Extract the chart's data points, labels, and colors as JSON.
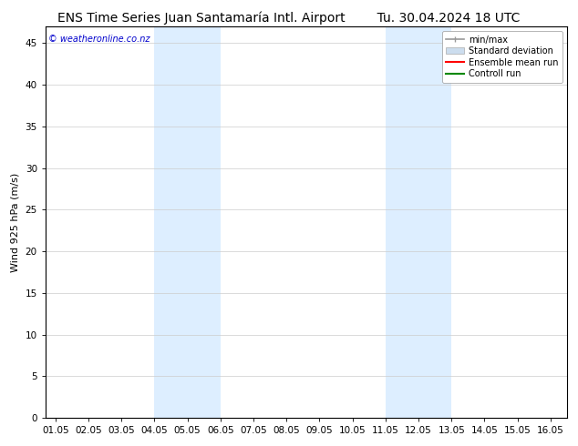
{
  "title_left": "ENS Time Series Juan Santamaría Intl. Airport",
  "title_right": "Tu. 30.04.2024 18 UTC",
  "ylabel": "Wind 925 hPa (m/s)",
  "watermark": "© weatheronline.co.nz",
  "bg_color": "#ffffff",
  "plot_bg_color": "#ffffff",
  "shaded_bands": [
    {
      "x_start": 4.05,
      "x_end": 6.05,
      "color": "#ddeeff"
    },
    {
      "x_start": 11.05,
      "x_end": 13.05,
      "color": "#ddeeff"
    }
  ],
  "ylim": [
    0,
    47
  ],
  "yticks": [
    0,
    5,
    10,
    15,
    20,
    25,
    30,
    35,
    40,
    45
  ],
  "xlim_start": 0.75,
  "xlim_end": 16.55,
  "xtick_labels": [
    "01.05",
    "02.05",
    "03.05",
    "04.05",
    "05.05",
    "06.05",
    "07.05",
    "08.05",
    "09.05",
    "10.05",
    "11.05",
    "12.05",
    "13.05",
    "14.05",
    "15.05",
    "16.05"
  ],
  "xtick_positions": [
    1.05,
    2.05,
    3.05,
    4.05,
    5.05,
    6.05,
    7.05,
    8.05,
    9.05,
    10.05,
    11.05,
    12.05,
    13.05,
    14.05,
    15.05,
    16.05
  ],
  "legend_items": [
    {
      "label": "min/max",
      "color": "#999999",
      "lw": 1.2,
      "style": "line_with_caps"
    },
    {
      "label": "Standard deviation",
      "color": "#ccddee",
      "lw": 8,
      "style": "band"
    },
    {
      "label": "Ensemble mean run",
      "color": "#ff0000",
      "lw": 1.5,
      "style": "line"
    },
    {
      "label": "Controll run",
      "color": "#008800",
      "lw": 1.5,
      "style": "line"
    }
  ],
  "title_fontsize": 10,
  "axis_fontsize": 8,
  "tick_fontsize": 7.5,
  "watermark_color": "#0000cc",
  "border_color": "#000000",
  "grid_color": "#cccccc"
}
